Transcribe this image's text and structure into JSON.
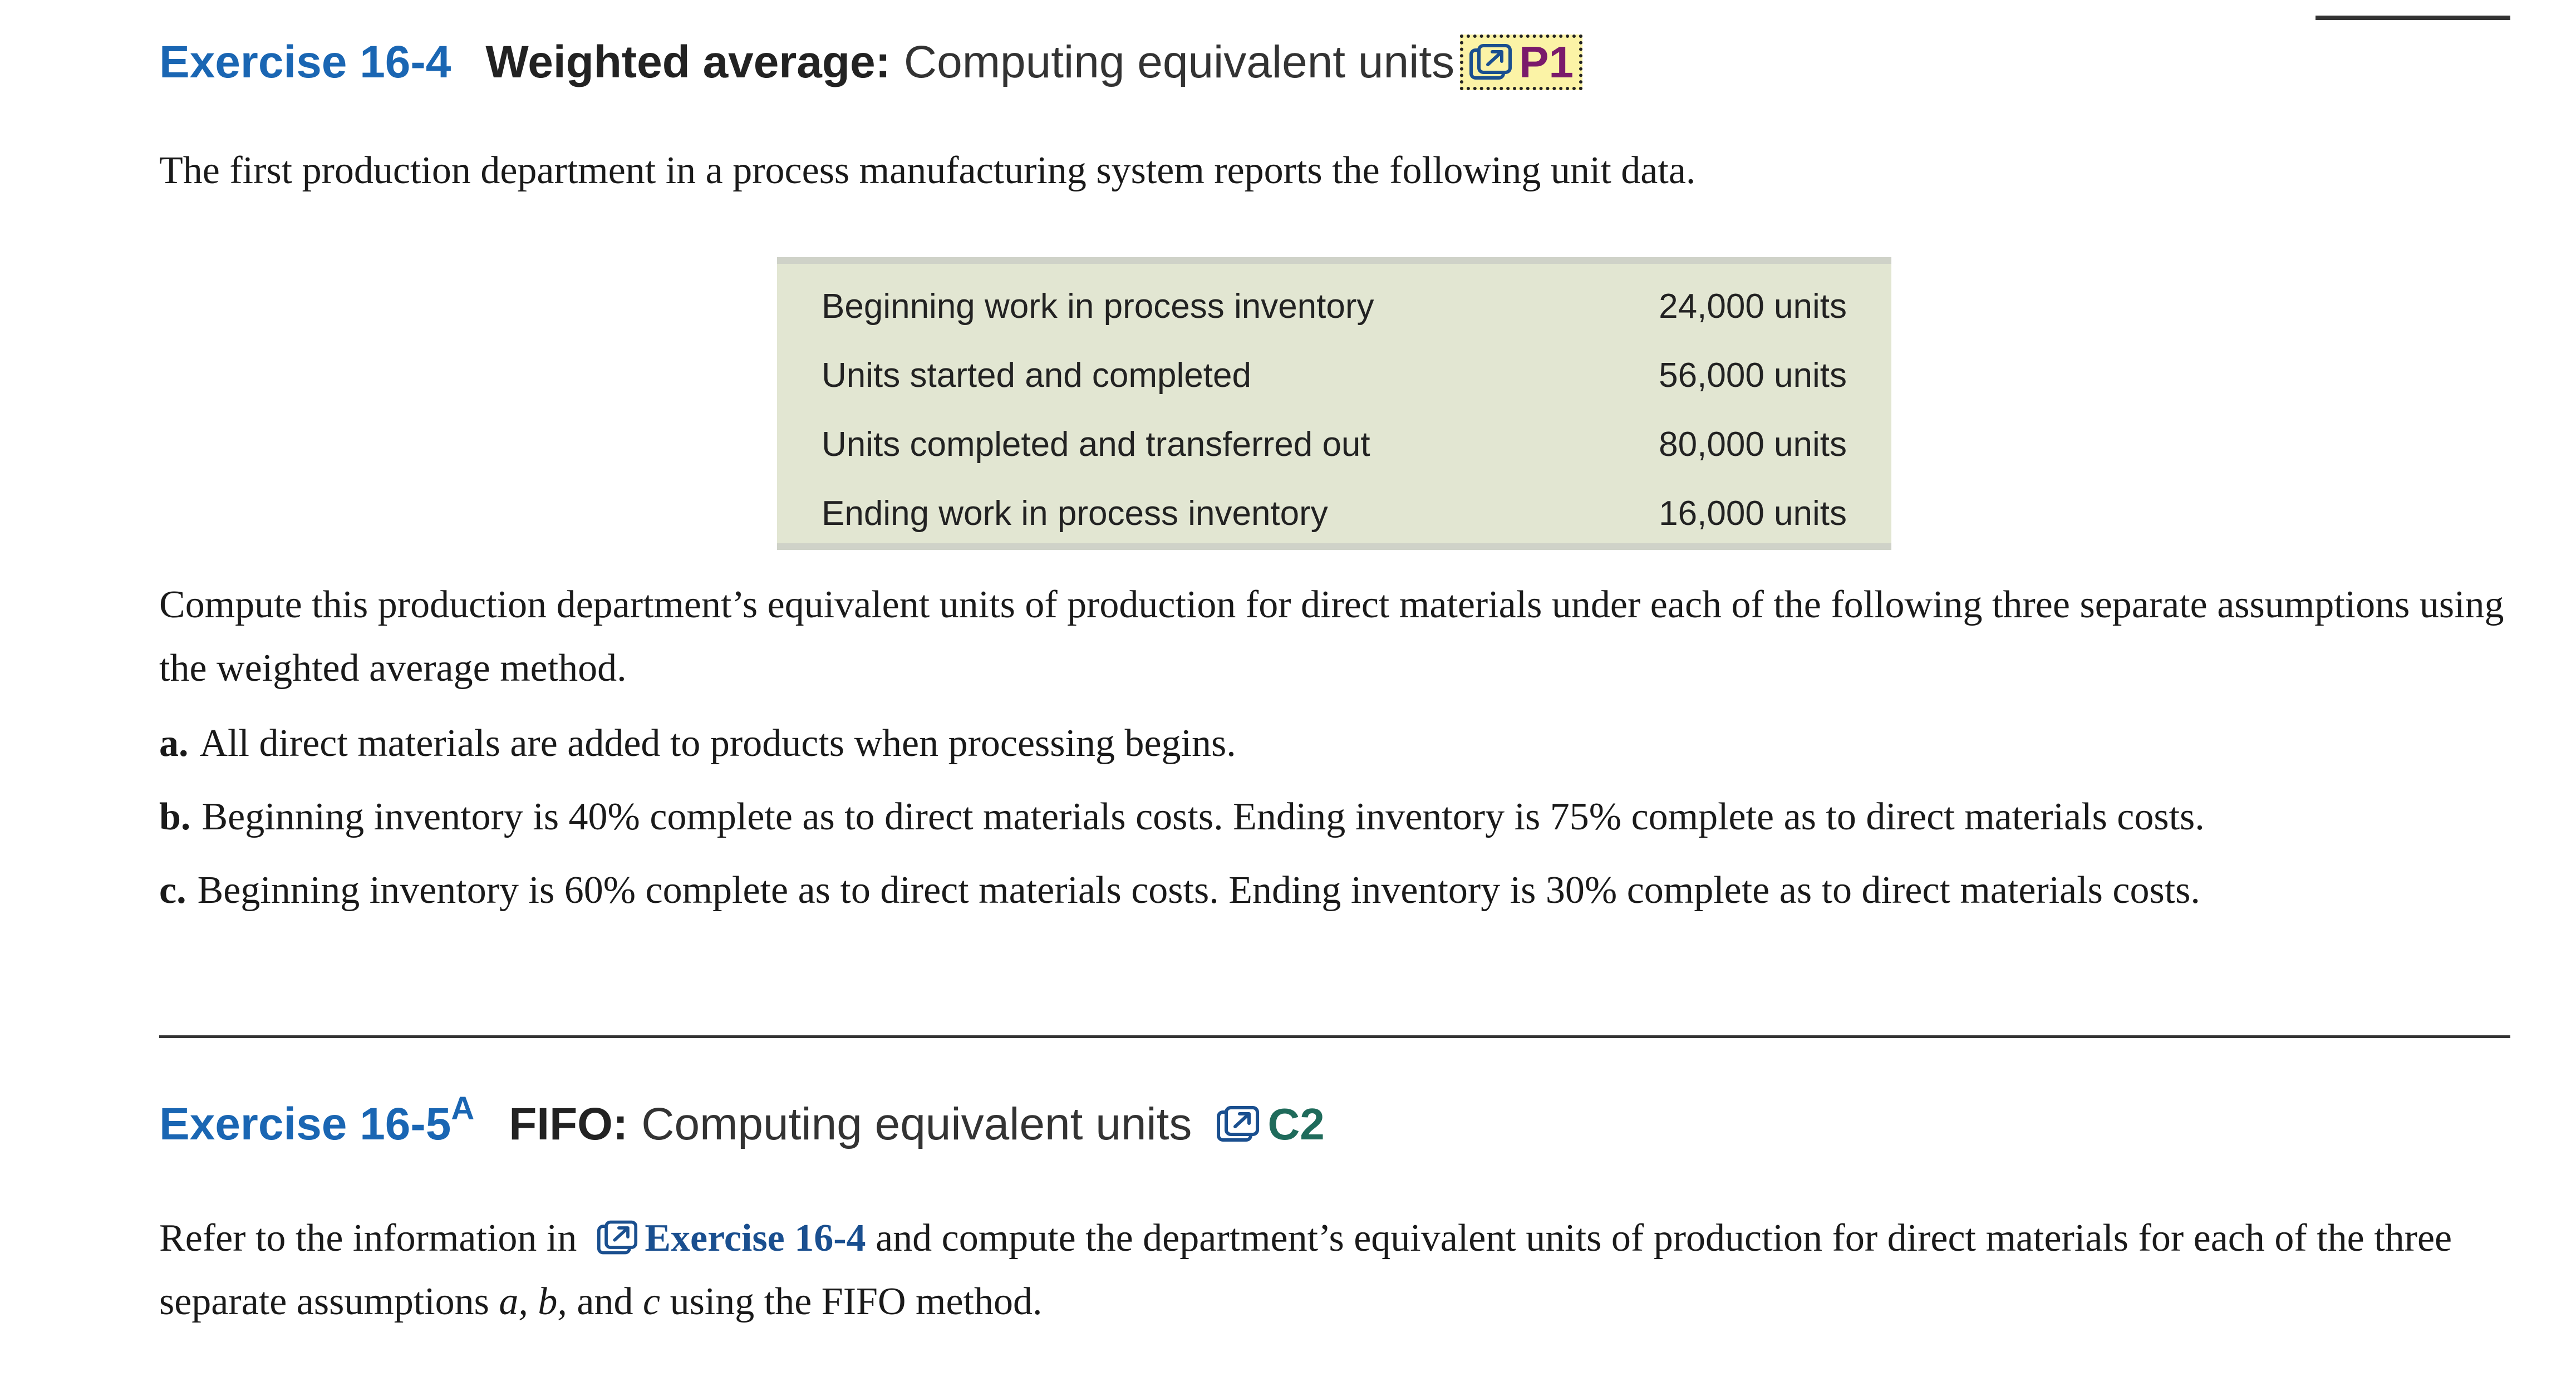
{
  "colors": {
    "exercise_number": "#1a66b3",
    "reference_code_p1": "#7a1a6b",
    "reference_code_c2": "#1f6b5b",
    "reference_highlight": "#fbf3a6",
    "table_background": "#e2e6d2",
    "inline_link": "#1a4f8f"
  },
  "exercise_16_4": {
    "number": "Exercise 16-4",
    "title_bold": "Weighted average:",
    "title": "Computing equivalent units",
    "reference_icon": "external-link-icon",
    "reference_code": "P1",
    "intro": "The first production department in a process manufacturing system reports the following unit data.",
    "table": [
      {
        "label": "Beginning work in process inventory",
        "value": "24,000 units"
      },
      {
        "label": "Units started and completed",
        "value": "56,000 units"
      },
      {
        "label": "Units completed and transferred out",
        "value": "80,000 units"
      },
      {
        "label": "Ending work in process inventory",
        "value": "16,000 units"
      }
    ],
    "question": "Compute this production department’s equivalent units of production for direct materials under each of the following three separate assumptions using the weighted average method.",
    "items": [
      {
        "label": "a.",
        "text": "All direct materials are added to products when processing begins."
      },
      {
        "label": "b.",
        "text": "Beginning inventory is 40% complete as to direct materials costs. Ending inventory is 75% complete as to direct materials costs."
      },
      {
        "label": "c.",
        "text": "Beginning inventory is 60% complete as to direct materials costs. Ending inventory is 30% complete as to direct materials costs."
      }
    ]
  },
  "exercise_16_5": {
    "number": "Exercise 16-5",
    "superscript": "A",
    "title_bold": "FIFO:",
    "title": "Computing equivalent units",
    "reference_icon": "external-link-icon",
    "reference_code": "C2",
    "text_before_link": "Refer to the information in",
    "link_text": "Exercise 16-4",
    "text_after_link": "and compute the department’s equivalent units of production for direct materials for each of the three separate assumptions",
    "italic_a": "a,",
    "italic_b": "b,",
    "and_word": "and",
    "italic_c": "c",
    "ending": "using the FIFO method."
  }
}
